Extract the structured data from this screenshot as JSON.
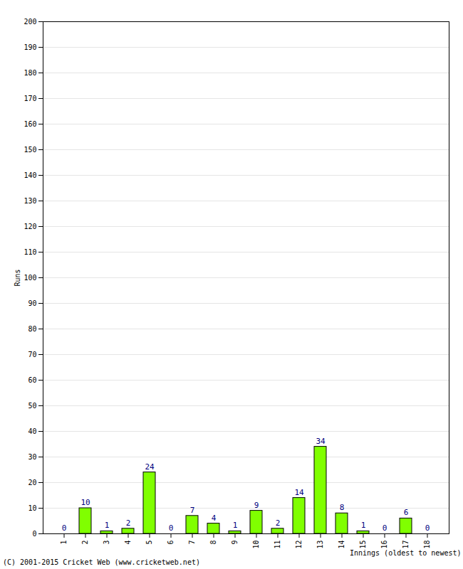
{
  "chart_data": {
    "type": "bar",
    "categories": [
      "1",
      "2",
      "3",
      "4",
      "5",
      "6",
      "7",
      "8",
      "9",
      "10",
      "11",
      "12",
      "13",
      "14",
      "15",
      "16",
      "17",
      "18"
    ],
    "values": [
      0,
      10,
      1,
      2,
      24,
      0,
      7,
      4,
      1,
      9,
      2,
      14,
      34,
      8,
      1,
      0,
      6,
      0
    ],
    "color": "#80ff00",
    "ylim": [
      0,
      200
    ],
    "yticks": [
      0,
      10,
      20,
      30,
      40,
      50,
      60,
      70,
      80,
      90,
      100,
      110,
      120,
      130,
      140,
      150,
      160,
      170,
      180,
      190,
      200
    ],
    "grid": true,
    "data_labels": true,
    "xlabel": "Innings (oldest to newest)",
    "ylabel": "Runs",
    "caption": "(C) 2001-2015 Cricket Web (www.cricketweb.net)"
  }
}
